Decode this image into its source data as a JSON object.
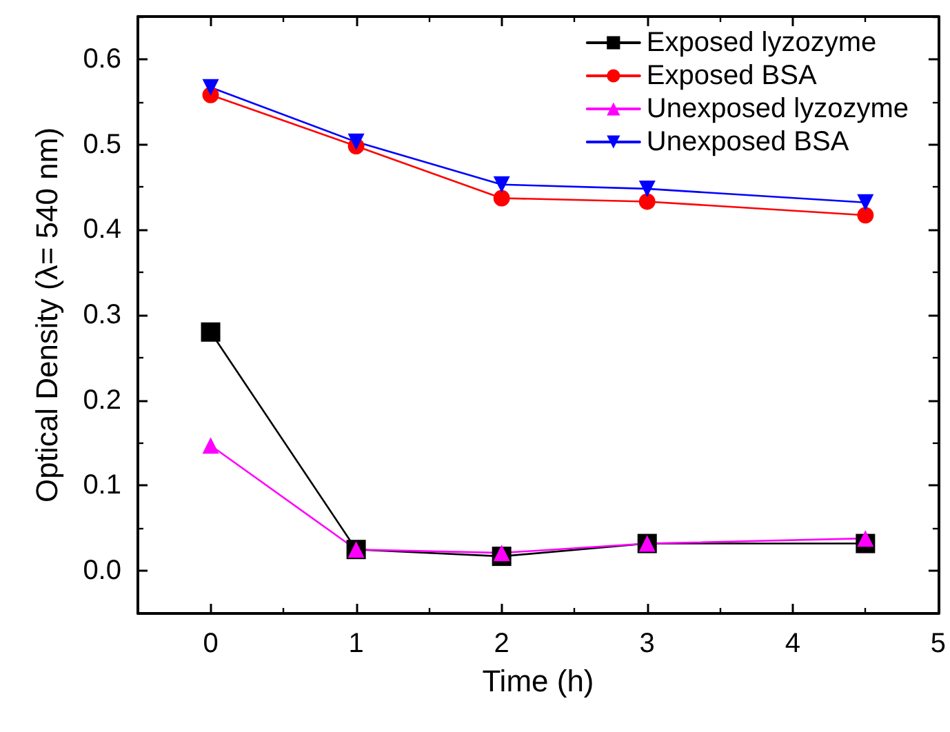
{
  "chart_data": {
    "type": "line",
    "xlabel": "Time (h)",
    "ylabel": "Optical Density (λ= 540 nm)",
    "x": [
      0,
      1,
      2,
      3,
      4.5
    ],
    "series": [
      {
        "name": "Exposed lyzozyme",
        "color": "#000000",
        "marker": "square",
        "values": [
          0.28,
          0.025,
          0.017,
          0.032,
          0.032
        ]
      },
      {
        "name": "Exposed BSA",
        "color": "#ff0000",
        "marker": "circle",
        "values": [
          0.558,
          0.498,
          0.437,
          0.433,
          0.417
        ]
      },
      {
        "name": "Unexposed lyzozyme",
        "color": "#ff00ff",
        "marker": "triangle",
        "values": [
          0.147,
          0.025,
          0.021,
          0.032,
          0.038
        ]
      },
      {
        "name": "Unexposed BSA",
        "color": "#0000ff",
        "marker": "triangle_down",
        "values": [
          0.567,
          0.503,
          0.453,
          0.448,
          0.432
        ]
      }
    ],
    "xlim": [
      -0.5,
      5
    ],
    "xticks": [
      0,
      1,
      2,
      3,
      4,
      5
    ],
    "ylim": [
      -0.05,
      0.65
    ],
    "yticks": [
      {
        "value": 0,
        "label": "0.0"
      },
      {
        "value": 0.1,
        "label": "0.1"
      },
      {
        "value": 0.2,
        "label": "0.2"
      },
      {
        "value": 0.3,
        "label": "0.3"
      },
      {
        "value": 0.4,
        "label": "0.4"
      },
      {
        "value": 0.5,
        "label": "0.5"
      },
      {
        "value": 0.6,
        "label": "0.6"
      }
    ],
    "grid": false,
    "legend": "top right",
    "line_style": "solid"
  }
}
